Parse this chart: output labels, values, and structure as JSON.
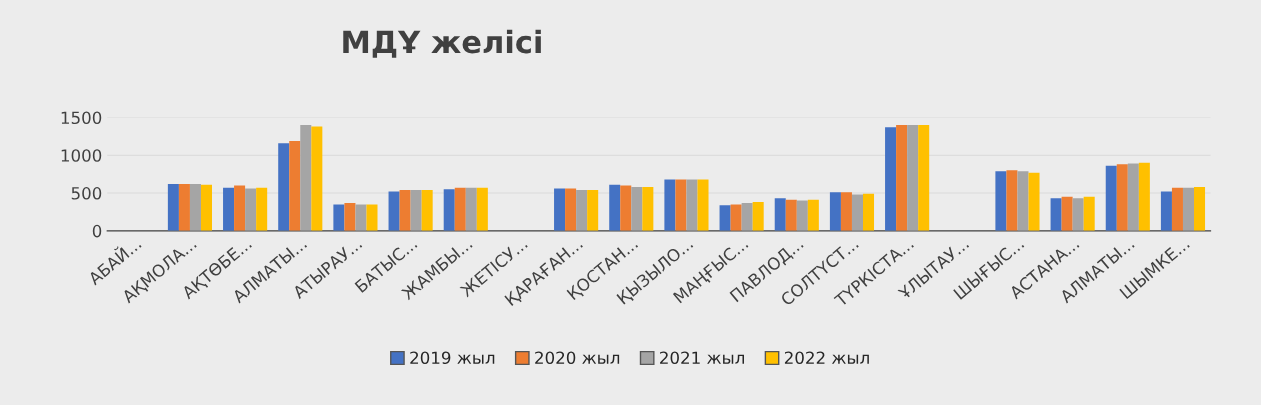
{
  "chart_data": {
    "type": "bar",
    "title": "МДҰ желісі",
    "categories": [
      "АБАЙ...",
      "АҚМОЛА...",
      "АҚТӨБЕ...",
      "АЛМАТЫ...",
      "АТЫРАУ...",
      "БАТЫС...",
      "ЖАМБЫ...",
      "ЖЕТІСУ...",
      "ҚАРАҒАН...",
      "ҚОСТАН...",
      "ҚЫЗЫЛО...",
      "МАҢҒЫС...",
      "ПАВЛОД...",
      "СОЛТҮСТ...",
      "ТҮРКІСТА...",
      "ҰЛЫТАУ...",
      "ШЫҒЫС...",
      "АСТАНА...",
      "АЛМАТЫ...",
      "ШЫМКЕ..."
    ],
    "series": [
      {
        "name": "2019 жыл",
        "color": "#4472c4",
        "values": [
          0,
          620,
          570,
          1160,
          350,
          520,
          550,
          0,
          560,
          610,
          680,
          340,
          430,
          510,
          1370,
          0,
          790,
          430,
          860,
          520
        ]
      },
      {
        "name": "2020 жыл",
        "color": "#ed7d31",
        "values": [
          0,
          620,
          600,
          1190,
          370,
          540,
          570,
          0,
          560,
          600,
          680,
          350,
          410,
          510,
          1400,
          0,
          800,
          450,
          880,
          570
        ]
      },
      {
        "name": "2021 жыл",
        "color": "#a5a5a5",
        "values": [
          0,
          620,
          560,
          1400,
          350,
          540,
          570,
          0,
          540,
          580,
          680,
          370,
          400,
          480,
          1400,
          0,
          790,
          430,
          890,
          570
        ]
      },
      {
        "name": "2022 жыл",
        "color": "#ffc000",
        "values": [
          0,
          610,
          570,
          1380,
          350,
          540,
          570,
          0,
          540,
          580,
          680,
          380,
          410,
          490,
          1400,
          0,
          770,
          450,
          900,
          580
        ]
      }
    ],
    "ylim": [
      0,
      1500
    ],
    "yticks": [
      0,
      500,
      1000,
      1500
    ],
    "grid": "y",
    "legend": "bottom"
  }
}
